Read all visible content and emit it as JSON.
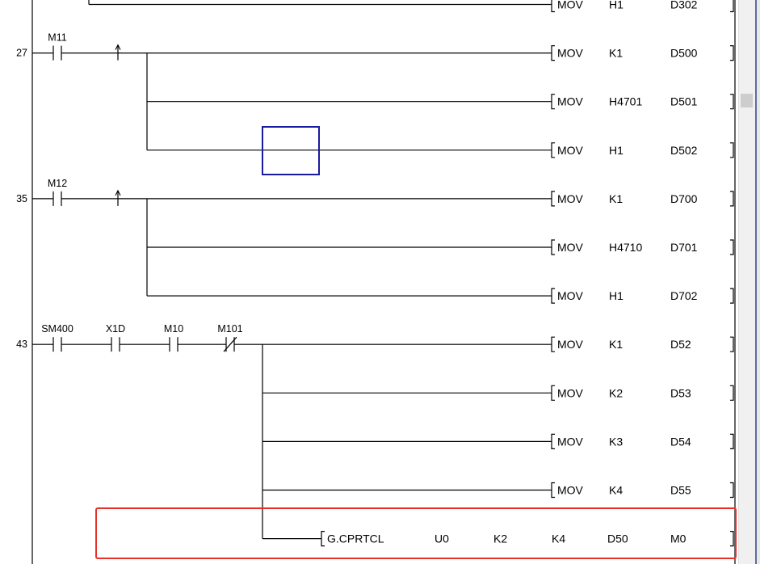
{
  "colors": {
    "cursor": "#1a1aa0",
    "highlight": "#e8302a"
  },
  "rungs": [
    {
      "step": "",
      "contacts": [],
      "outputs": [
        {
          "instr": "MOV",
          "ops": [
            "H1",
            "D302"
          ]
        }
      ]
    },
    {
      "step": "27",
      "contacts": [
        {
          "label": "M11",
          "type": "no"
        }
      ],
      "rising_edge": true,
      "outputs": [
        {
          "instr": "MOV",
          "ops": [
            "K1",
            "D500"
          ]
        },
        {
          "instr": "MOV",
          "ops": [
            "H4701",
            "D501"
          ]
        },
        {
          "instr": "MOV",
          "ops": [
            "H1",
            "D502"
          ]
        }
      ]
    },
    {
      "step": "35",
      "contacts": [
        {
          "label": "M12",
          "type": "no"
        }
      ],
      "rising_edge": true,
      "outputs": [
        {
          "instr": "MOV",
          "ops": [
            "K1",
            "D700"
          ]
        },
        {
          "instr": "MOV",
          "ops": [
            "H4710",
            "D701"
          ]
        },
        {
          "instr": "MOV",
          "ops": [
            "H1",
            "D702"
          ]
        }
      ]
    },
    {
      "step": "43",
      "contacts": [
        {
          "label": "SM400",
          "type": "no"
        },
        {
          "label": "X1D",
          "type": "no"
        },
        {
          "label": "M10",
          "type": "no"
        },
        {
          "label": "M101",
          "type": "nc"
        }
      ],
      "rising_edge": false,
      "outputs": [
        {
          "instr": "MOV",
          "ops": [
            "K1",
            "D52"
          ]
        },
        {
          "instr": "MOV",
          "ops": [
            "K2",
            "D53"
          ]
        },
        {
          "instr": "MOV",
          "ops": [
            "K3",
            "D54"
          ]
        },
        {
          "instr": "MOV",
          "ops": [
            "K4",
            "D55"
          ]
        },
        {
          "instr": "G.CPRTCL",
          "ops": [
            "U0",
            "K2",
            "K4",
            "D50",
            "M0"
          ]
        }
      ]
    }
  ]
}
